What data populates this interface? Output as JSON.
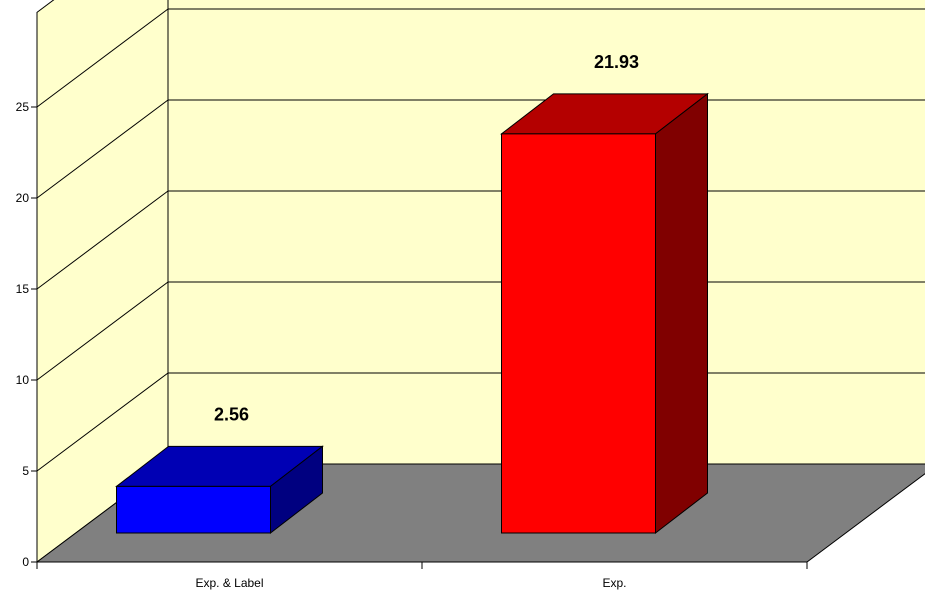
{
  "chart_data": {
    "type": "bar",
    "style": "3d-column",
    "categories": [
      "Exp. & Label",
      "Exp."
    ],
    "values": [
      2.56,
      21.93
    ],
    "data_labels": [
      "2.56",
      "21.93"
    ],
    "yticks": [
      0,
      5,
      10,
      15,
      20,
      25
    ],
    "ytick_labels": [
      "0",
      "5",
      "10",
      "15",
      "20",
      "25"
    ],
    "ylim": [
      0,
      25
    ],
    "title": "",
    "xlabel": "",
    "ylabel": "",
    "grid": true,
    "legend": "none",
    "colors": {
      "wall": "#ffffcc",
      "floor": "#808080",
      "bars": [
        "#0000ff",
        "#ff0000"
      ],
      "bar_tops": [
        "#0000b4",
        "#b40000"
      ],
      "bar_sides": [
        "#000080",
        "#800000"
      ]
    }
  }
}
